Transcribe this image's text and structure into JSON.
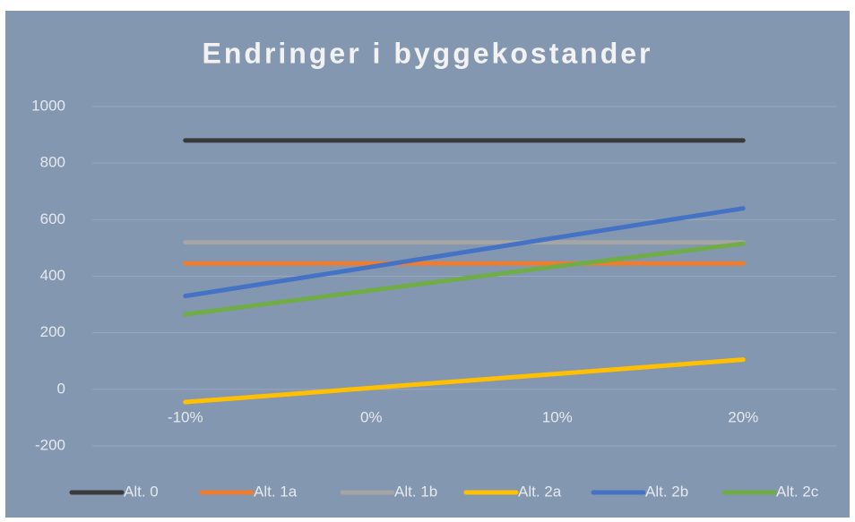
{
  "chart_data": {
    "type": "line",
    "title": "Endringer i byggekostander",
    "categories": [
      "-10%",
      "0%",
      "10%",
      "20%"
    ],
    "series": [
      {
        "name": "Alt. 0",
        "color": "#3a3a3a",
        "values": [
          880,
          880,
          880,
          880
        ]
      },
      {
        "name": "Alt. 1a",
        "color": "#ed7d31",
        "values": [
          445,
          445,
          445,
          445
        ]
      },
      {
        "name": "Alt. 1b",
        "color": "#a5a5a5",
        "values": [
          520,
          520,
          520,
          520
        ]
      },
      {
        "name": "Alt. 2a",
        "color": "#ffc000",
        "values": [
          -45,
          5,
          55,
          105
        ]
      },
      {
        "name": "Alt. 2b",
        "color": "#4472c4",
        "values": [
          330,
          433,
          537,
          640
        ]
      },
      {
        "name": "Alt. 2c",
        "color": "#70ad47",
        "values": [
          265,
          350,
          435,
          515
        ]
      }
    ],
    "ylim": [
      -200,
      1000
    ],
    "yticks": [
      -200,
      0,
      200,
      400,
      600,
      800,
      1000
    ],
    "grid": true,
    "legend": "bottom"
  }
}
